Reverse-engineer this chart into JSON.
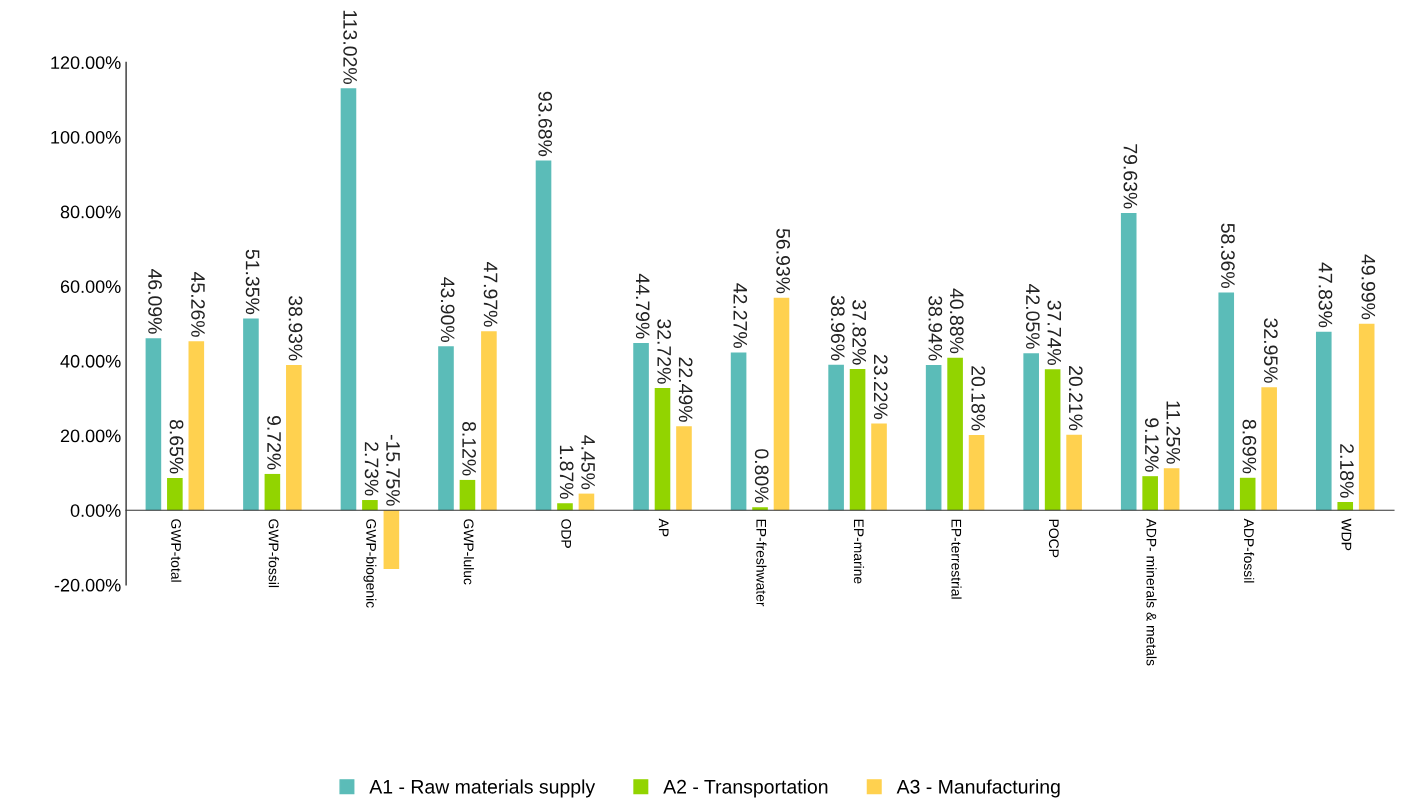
{
  "chart_data": {
    "type": "bar",
    "categories": [
      "GWP-total",
      "GWP-fossil",
      "GWP-biogenic",
      "GWP-luluc",
      "ODP",
      "AP",
      "EP-freshwater",
      "EP-marine",
      "EP-terrestrial",
      "POCP",
      "ADP- minerals & metals",
      "ADP-fossil",
      "WDP"
    ],
    "series": [
      {
        "name": "A1 - Raw materials supply",
        "color": "#5bbcb8",
        "values": [
          46.09,
          51.35,
          113.02,
          43.9,
          93.68,
          44.79,
          42.27,
          38.96,
          38.94,
          42.05,
          79.63,
          58.36,
          47.83
        ],
        "value_labels": [
          "46.09%",
          "51.35%",
          "113.02%",
          "43.90%",
          "93.68%",
          "44.79%",
          "42.27%",
          "38.96%",
          "38.94%",
          "42.05%",
          "79.63%",
          "58.36%",
          "47.83%"
        ]
      },
      {
        "name": "A2 - Transportation",
        "color": "#92d400",
        "values": [
          8.65,
          9.72,
          2.73,
          8.12,
          1.87,
          32.72,
          0.8,
          37.82,
          40.88,
          37.74,
          9.12,
          8.69,
          2.18
        ],
        "value_labels": [
          "8.65%",
          "9.72%",
          "2.73%",
          "8.12%",
          "1.87%",
          "32.72%",
          "0.80%",
          "37.82%",
          "40.88%",
          "37.74%",
          "9.12%",
          "8.69%",
          "2.18%"
        ]
      },
      {
        "name": "A3 - Manufacturing",
        "color": "#ffd14f",
        "values": [
          45.26,
          38.93,
          -15.75,
          47.97,
          4.45,
          22.49,
          56.93,
          23.22,
          20.18,
          20.21,
          11.25,
          32.95,
          49.99
        ],
        "value_labels": [
          "45.26%",
          "38.93%",
          "-15.75%",
          "47.97%",
          "4.45%",
          "22.49%",
          "56.93%",
          "23.22%",
          "20.18%",
          "20.21%",
          "11.25%",
          "32.95%",
          "49.99%"
        ]
      }
    ],
    "ylim": [
      -20,
      120
    ],
    "yticks": [
      {
        "value": -20,
        "label": "-20.00%"
      },
      {
        "value": 0,
        "label": "0.00%"
      },
      {
        "value": 20,
        "label": "20.00%"
      },
      {
        "value": 40,
        "label": "40.00%"
      },
      {
        "value": 60,
        "label": "60.00%"
      },
      {
        "value": 80,
        "label": "80.00%"
      },
      {
        "value": 100,
        "label": "100.00%"
      },
      {
        "value": 120,
        "label": "120.00%"
      }
    ],
    "grid": false,
    "legend": "bottom"
  }
}
